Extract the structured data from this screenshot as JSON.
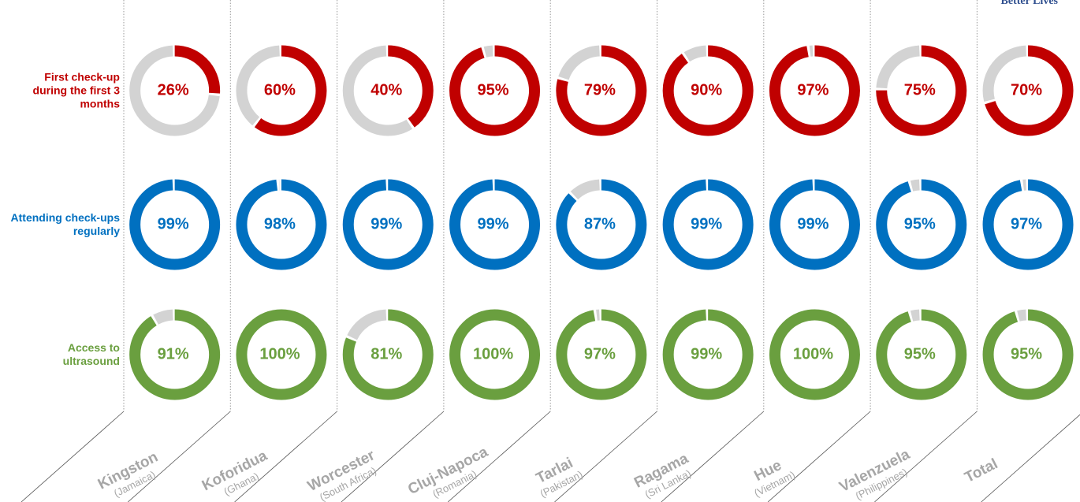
{
  "chart_data": {
    "type": "donut",
    "logo_text": "Better Lives",
    "categories": [
      "Kingston",
      "Koforidua",
      "Worcester",
      "Cluj-Napoca",
      "Tarlai",
      "Ragama",
      "Hue",
      "Valenzuela",
      "Total"
    ],
    "countries": [
      "(Jamaica)",
      "(Ghana)",
      "(South Africa)",
      "(Romania)",
      "(Pakistan)",
      "(Sri Lanka)",
      "(Vietnam)",
      "(Philippines)",
      null
    ],
    "remainder_color": "#d3d3d3",
    "series": [
      {
        "name": "First check-up during the first 3 months",
        "color": "#c00000",
        "values": [
          26,
          60,
          40,
          95,
          79,
          90,
          97,
          75,
          70
        ],
        "value_labels": [
          "26%",
          "60%",
          "40%",
          "95%",
          "79%",
          "90%",
          "97%",
          "75%",
          "70%"
        ]
      },
      {
        "name": "Attending check-ups regularly",
        "color": "#0070c0",
        "values": [
          99,
          98,
          99,
          99,
          87,
          99,
          99,
          95,
          97
        ],
        "value_labels": [
          "99%",
          "98%",
          "99%",
          "99%",
          "87%",
          "99%",
          "99%",
          "95%",
          "97%"
        ]
      },
      {
        "name": "Access to ultrasound",
        "color": "#6a9f3f",
        "values": [
          91,
          100,
          81,
          100,
          97,
          99,
          100,
          95,
          95
        ],
        "value_labels": [
          "91%",
          "100%",
          "81%",
          "100%",
          "97%",
          "99%",
          "100%",
          "95%",
          "95%"
        ]
      }
    ]
  }
}
